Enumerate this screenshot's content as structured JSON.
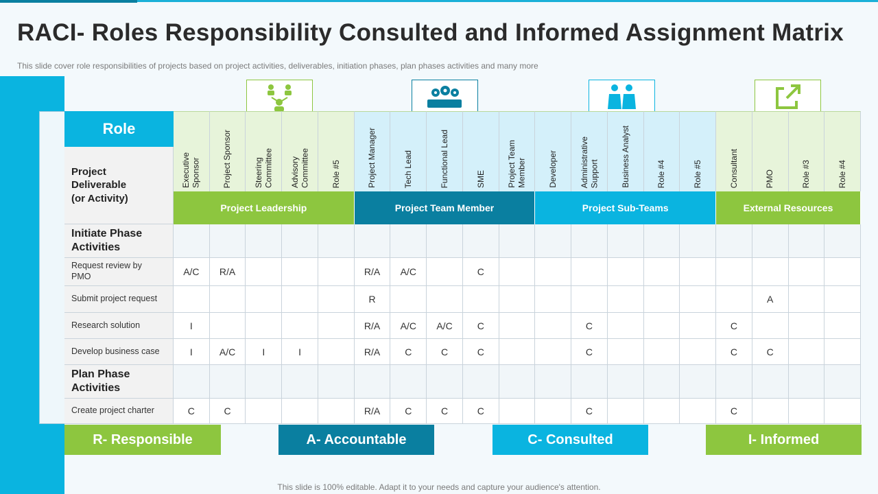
{
  "header": {
    "title": "RACI- Roles Responsibility Consulted and Informed Assignment Matrix",
    "subtitle": "This slide cover role responsibilities of projects based on project activities, deliverables,  initiation phases, plan phases activities and many more"
  },
  "table": {
    "role_header": "Role",
    "activity_header": "Project\nDeliverable\n(or Activity)",
    "groups": [
      {
        "name": "Project Leadership",
        "roles": [
          "Executive\nSponsor",
          "Project Sponsor",
          "Steering\nCommittee",
          "Advisory\nCommittee",
          "Role #5"
        ]
      },
      {
        "name": "Project Team Member",
        "roles": [
          "Project Manager",
          "Tech Lead",
          "Functional Lead",
          "SME",
          "Project Team\nMember"
        ]
      },
      {
        "name": "Project Sub-Teams",
        "roles": [
          "Developer",
          "Administrative\nSupport",
          "Business Analyst",
          "Role #4",
          "Role #5"
        ]
      },
      {
        "name": "External Resources",
        "roles": [
          "Consultant",
          "PMO",
          "Role #3",
          "Role #4"
        ]
      }
    ],
    "sections": [
      {
        "title": "Initiate Phase\nActivities",
        "rows": [
          {
            "activity": "Request review  by\nPMO",
            "cells": [
              "A/C",
              "R/A",
              null,
              null,
              null,
              "R/A",
              "A/C",
              null,
              "C",
              null,
              null,
              null,
              null,
              null,
              null,
              null,
              null,
              null,
              null
            ]
          },
          {
            "activity": "Submit project request",
            "cells": [
              null,
              null,
              null,
              null,
              null,
              "R",
              null,
              null,
              null,
              null,
              null,
              null,
              null,
              null,
              null,
              null,
              "A",
              null,
              null
            ]
          },
          {
            "activity": "Research solution",
            "cells": [
              "I",
              null,
              null,
              null,
              null,
              "R/A",
              "A/C",
              "A/C",
              "C",
              null,
              null,
              "C",
              null,
              null,
              null,
              "C",
              null,
              null,
              null
            ]
          },
          {
            "activity": "Develop  business case",
            "cells": [
              "I",
              "A/C",
              "I",
              "I",
              null,
              "R/A",
              "C",
              "C",
              "C",
              null,
              null,
              "C",
              null,
              null,
              null,
              "C",
              "C",
              null,
              null
            ]
          }
        ]
      },
      {
        "title": "Plan Phase\nActivities",
        "rows": [
          {
            "activity": "Create project charter",
            "cells": [
              "C",
              "C",
              null,
              null,
              null,
              "R/A",
              "C",
              "C",
              "C",
              null,
              null,
              "C",
              null,
              null,
              null,
              "C",
              null,
              null,
              null
            ]
          }
        ]
      }
    ]
  },
  "legend": [
    "R- Responsible",
    "A- Accountable",
    "C- Consulted",
    "I- Informed"
  ],
  "footer": "This slide is 100% editable. Adapt it to your needs and capture your audience's attention."
}
